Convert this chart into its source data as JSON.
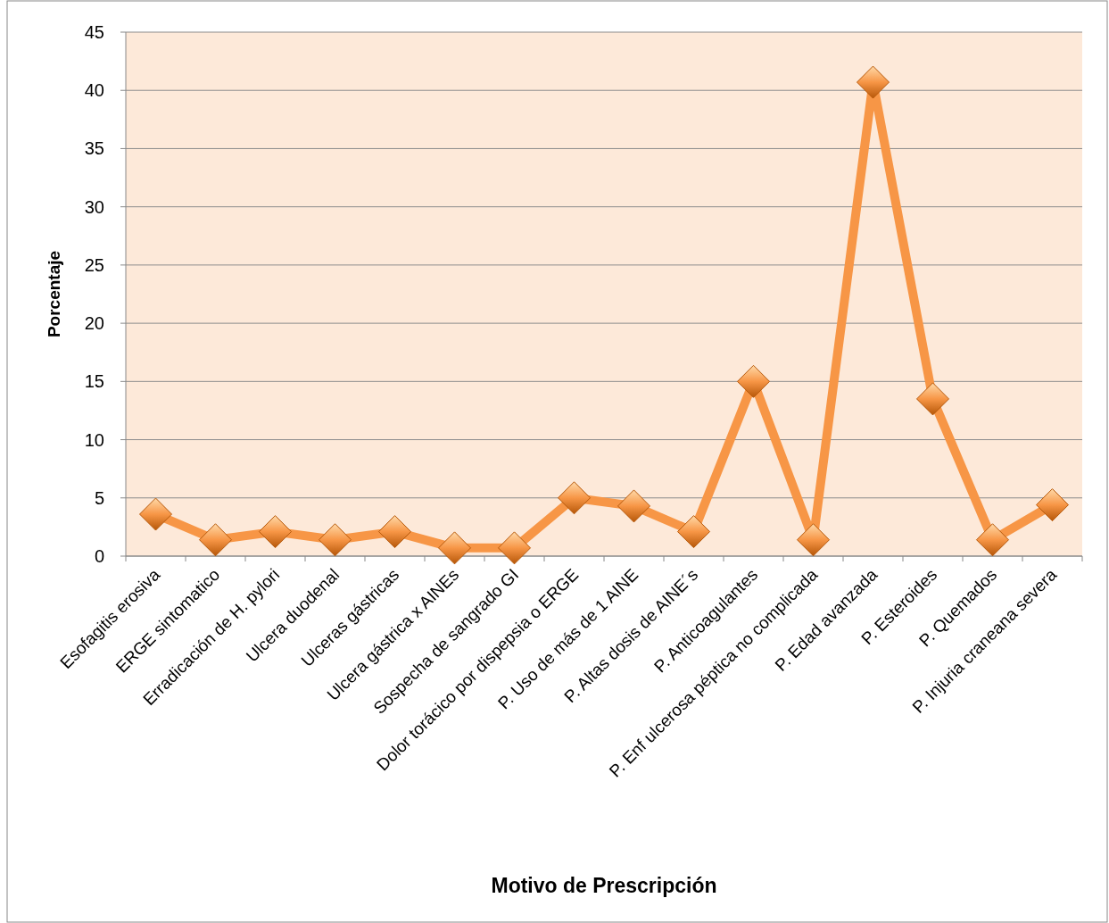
{
  "chart_data": {
    "type": "line",
    "xlabel": "Motivo de Prescripción",
    "ylabel": "Porcentaje",
    "categories": [
      "Esofagitis erosiva",
      "ERGE sintomatico",
      "Erradicación de H. pylori",
      "Ulcera duodenal",
      "Ulceras gástricas",
      "Ulcera gástrica x AINEs",
      "Sospecha de sangrado GI",
      "Dolor torácico por dispepsia o ERGE",
      "P. Uso de más de 1 AINE",
      "P. Altas dosis de AINE´s",
      "P. Anticoagulantes",
      "P. Enf ulcerosa péptica no complicada",
      "P. Edad avanzada",
      "P. Esteroides",
      "P. Quemados",
      "P. Injuria craneana severa"
    ],
    "series": [
      {
        "color": "#f79646",
        "values": [
          3.6,
          1.4,
          2.1,
          1.4,
          2.1,
          0.7,
          0.7,
          5.0,
          4.3,
          2.1,
          15.0,
          1.4,
          40.7,
          13.5,
          1.4,
          4.4
        ]
      }
    ],
    "ylim": [
      0,
      45
    ],
    "yticks": [
      0,
      5,
      10,
      15,
      20,
      25,
      30,
      35,
      40,
      45
    ],
    "grid": "y",
    "marker": "diamond",
    "line_style": "solid"
  }
}
